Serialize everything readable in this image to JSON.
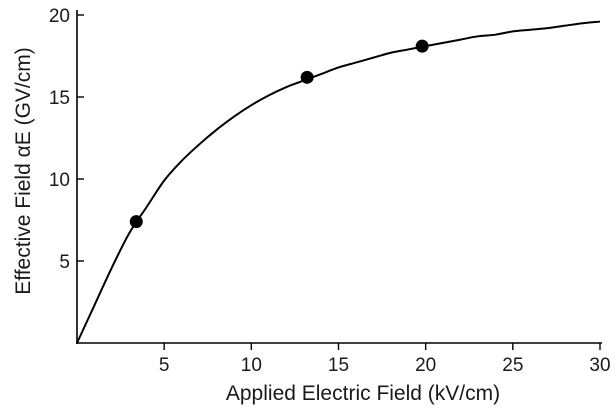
{
  "chart_data": {
    "type": "line",
    "xlabel": "Applied Electric Field (kV/cm)",
    "ylabel": "Effective Field αE (GV/cm)",
    "xlim": [
      0,
      30
    ],
    "ylim": [
      0,
      20
    ],
    "x_ticks": [
      5,
      10,
      15,
      20,
      25,
      30
    ],
    "y_ticks": [
      5,
      10,
      15,
      20
    ],
    "grid": false,
    "series": [
      {
        "style": "line",
        "x": [
          0,
          1,
          2,
          3,
          4,
          5,
          6,
          7,
          8,
          9,
          10,
          11,
          12,
          13,
          14,
          15,
          16,
          17,
          18,
          19,
          20,
          21,
          22,
          23,
          24,
          25,
          26,
          27,
          28,
          29,
          30
        ],
        "y": [
          0,
          2.3,
          4.6,
          6.7,
          8.3,
          9.9,
          11.1,
          12.1,
          13.0,
          13.8,
          14.5,
          15.1,
          15.6,
          16.0,
          16.4,
          16.8,
          17.1,
          17.4,
          17.7,
          17.9,
          18.1,
          18.3,
          18.5,
          18.7,
          18.8,
          19.0,
          19.1,
          19.2,
          19.35,
          19.5,
          19.6
        ]
      },
      {
        "style": "markers",
        "x": [
          3.4,
          13.2,
          19.8
        ],
        "y": [
          7.4,
          16.2,
          18.1
        ]
      }
    ]
  }
}
